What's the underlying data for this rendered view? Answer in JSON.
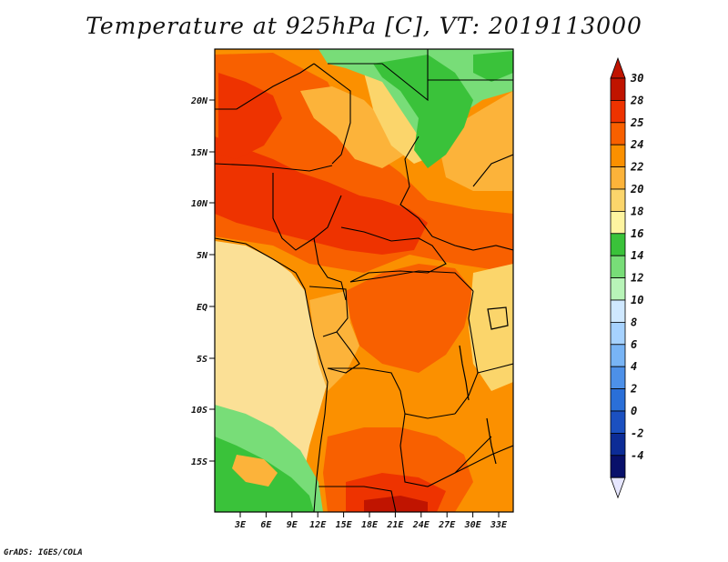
{
  "title": "Temperature at 925hPa [C], VT: 2019113000",
  "credit": "GrADS: IGES/COLA",
  "map": {
    "lat_labels": [
      "20N",
      "15N",
      "10N",
      "5N",
      "EQ",
      "5S",
      "10S",
      "15S"
    ],
    "lon_labels": [
      "3E",
      "6E",
      "9E",
      "12E",
      "15E",
      "18E",
      "21E",
      "24E",
      "27E",
      "30E",
      "33E"
    ]
  },
  "colorbar": {
    "labels": [
      "30",
      "28",
      "25",
      "24",
      "22",
      "20",
      "18",
      "16",
      "14",
      "12",
      "10",
      "8",
      "6",
      "4",
      "2",
      "0",
      "-2",
      "-4"
    ],
    "colors": [
      "#c01400",
      "#ee3300",
      "#f86000",
      "#fb9000",
      "#fcb33a",
      "#fbd56b",
      "#fef4a0",
      "#3ac23a",
      "#78dd78",
      "#b8f4b8",
      "#cfe8ff",
      "#a6d2ff",
      "#78b4f5",
      "#4d90e8",
      "#2a6fd8",
      "#1b50c0",
      "#0c2c96",
      "#08106a"
    ],
    "top_cap_color": "#c01400",
    "bottom_cap_color": "#e6e6ff"
  },
  "colors": {
    "water": "#fbe096",
    "hot": "#ee3300",
    "orange": "#f86000",
    "ltorange": "#fb9000",
    "yellow": "#fcb33a",
    "green": "#3ac23a",
    "ltgreen": "#78dd78"
  }
}
